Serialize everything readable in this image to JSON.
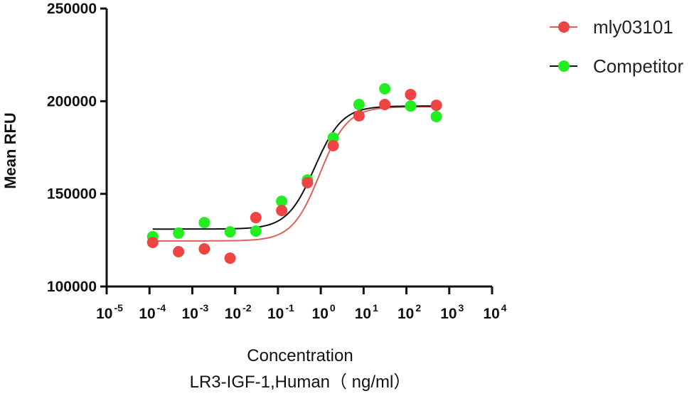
{
  "chart_data": {
    "type": "scatter",
    "title": "",
    "xlabel": "Concentration",
    "xlabel_line2": "LR3-IGF-1,Human（ ng/ml）",
    "ylabel": "Mean RFU",
    "xscale": "log",
    "xlim": [
      1e-05,
      10000
    ],
    "ylim": [
      100000,
      250000
    ],
    "grid": false,
    "legend_position": "top-right",
    "x_ticks": [
      {
        "base": "10",
        "exp": "-5",
        "value": 1e-05
      },
      {
        "base": "10",
        "exp": "-4",
        "value": 0.0001
      },
      {
        "base": "10",
        "exp": "-3",
        "value": 0.001
      },
      {
        "base": "10",
        "exp": "-2",
        "value": 0.01
      },
      {
        "base": "10",
        "exp": "-1",
        "value": 0.1
      },
      {
        "base": "10",
        "exp": "0",
        "value": 1
      },
      {
        "base": "10",
        "exp": "1",
        "value": 10
      },
      {
        "base": "10",
        "exp": "2",
        "value": 100
      },
      {
        "base": "10",
        "exp": "3",
        "value": 1000
      },
      {
        "base": "10",
        "exp": "4",
        "value": 10000
      }
    ],
    "y_ticks": [
      {
        "label": "100000",
        "value": 100000
      },
      {
        "label": "150000",
        "value": 150000
      },
      {
        "label": "200000",
        "value": 200000
      },
      {
        "label": "250000",
        "value": 250000
      }
    ],
    "x": [
      0.000119,
      0.000477,
      0.00191,
      0.00763,
      0.0305,
      0.122,
      0.488,
      1.95,
      7.81,
      31.25,
      125,
      500
    ],
    "series": [
      {
        "name": "mly03101",
        "marker_color": "#ef4444",
        "line_color": "#e0605c",
        "values": [
          123800,
          118800,
          120300,
          115300,
          137200,
          141000,
          156000,
          176000,
          192100,
          198200,
          203600,
          197800
        ],
        "fit": {
          "model": "4PL",
          "bottom": 124600,
          "top": 197000,
          "ec50": 0.95,
          "hill": 1.35
        }
      },
      {
        "name": "Competitor",
        "marker_color": "#22ee22",
        "line_color": "#111111",
        "values": [
          126900,
          128800,
          134500,
          129500,
          129900,
          146000,
          157500,
          180200,
          198200,
          206700,
          197400,
          191700
        ],
        "fit": {
          "model": "4PL",
          "bottom": 131000,
          "top": 197400,
          "ec50": 0.72,
          "hill": 1.35
        }
      }
    ]
  }
}
